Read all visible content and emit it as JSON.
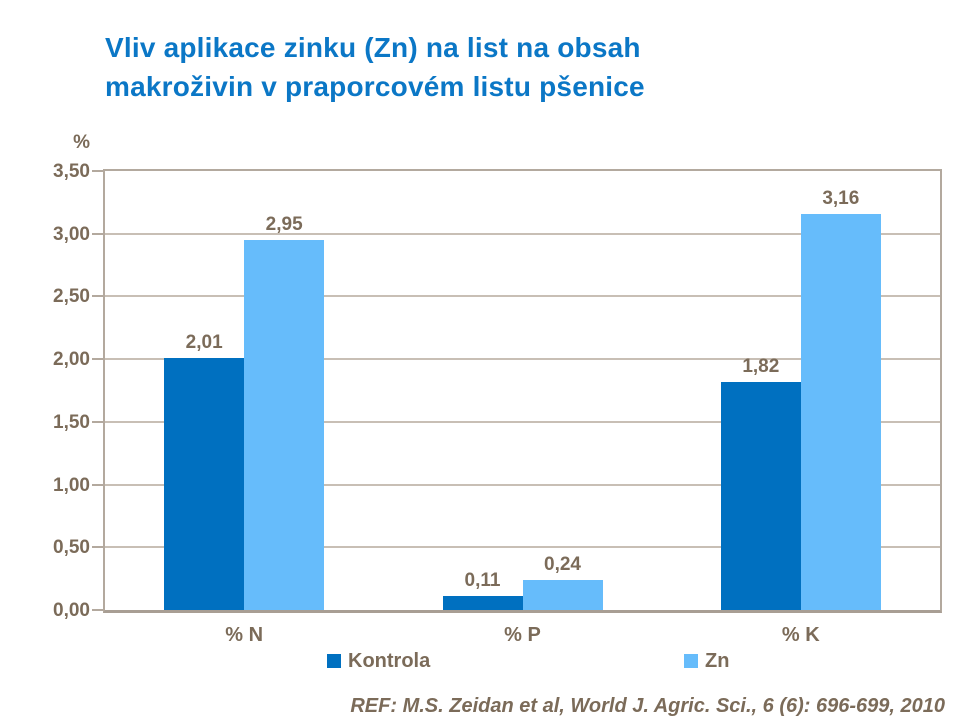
{
  "title": {
    "line1": "Vliv aplikace zinku (Zn) na list na obsah",
    "line2": "makroživin v praporcovém listu pšenice"
  },
  "footer": {
    "reference": "REF: M.S. Zeidan et al, World J. Agric. Sci., 6 (6): 696-699, 2010"
  },
  "chart_data": {
    "type": "bar",
    "title": "Vliv aplikace zinku (Zn) na list na obsah makroživin v praporcovém listu pšenice",
    "categories": [
      "% N",
      "% P",
      "% K"
    ],
    "series": [
      {
        "name": "Kontrola",
        "color": "#0070C0",
        "values": [
          2.01,
          0.11,
          1.82
        ],
        "value_labels": [
          "2,01",
          "0,11",
          "1,82"
        ]
      },
      {
        "name": "Zn",
        "color": "#66BCFB",
        "values": [
          2.95,
          0.24,
          3.16
        ],
        "value_labels": [
          "2,95",
          "0,24",
          "3,16"
        ]
      }
    ],
    "y_axis_title": "%",
    "y_ticks": [
      "0,00",
      "0,50",
      "1,00",
      "1,50",
      "2,00",
      "2,50",
      "3,00",
      "3,50"
    ],
    "y_tick_values": [
      0,
      0.5,
      1.0,
      1.5,
      2.0,
      2.5,
      3.0,
      3.5
    ],
    "ylim": [
      0,
      3.5
    ],
    "grid": true,
    "legend_position": "bottom"
  },
  "colors": {
    "title_blue": "#0B77C6",
    "axis_text": "#7B6B59",
    "frame": "#B3A99E",
    "gridline": "#C8BFB5",
    "kontrola_bar": "#0070C0",
    "zn_bar": "#66BCFB"
  }
}
